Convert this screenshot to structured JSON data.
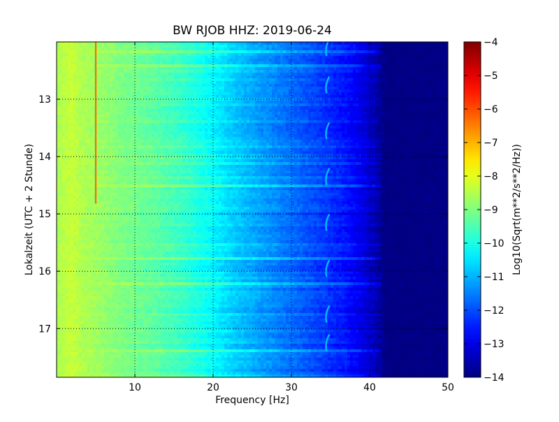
{
  "chart_data": {
    "type": "heatmap",
    "title": "BW RJOB HHZ: 2019-06-24",
    "xlabel": "Frequency [Hz]",
    "ylabel": "Lokalzeit (UTC + 2 Stunde)",
    "colorbar_label": "Log10(Sqrt(m**2/s**2/Hz))",
    "xlim": [
      0,
      50
    ],
    "ylim": [
      17.85,
      12.0
    ],
    "x_ticks": [
      10,
      20,
      30,
      40,
      50
    ],
    "x_tick_labels": [
      "10",
      "20",
      "30",
      "40",
      "50"
    ],
    "y_ticks": [
      13,
      14,
      15,
      16,
      17
    ],
    "y_tick_labels": [
      "13",
      "14",
      "15",
      "16",
      "17"
    ],
    "clim": [
      -14,
      -4
    ],
    "colorbar_ticks": [
      -4,
      -5,
      -6,
      -7,
      -8,
      -9,
      -10,
      -11,
      -12,
      -13,
      -14
    ],
    "colorbar_tick_labels": [
      "−4",
      "−5",
      "−6",
      "−7",
      "−8",
      "−9",
      "−10",
      "−11",
      "−12",
      "−13",
      "−14"
    ],
    "colormap": "jet",
    "grid": true,
    "grid_style": "dotted",
    "spectrum_profile": {
      "frequency_hz": [
        0,
        1,
        2,
        3,
        5,
        8,
        12,
        16,
        20,
        23,
        26,
        30,
        34,
        37,
        39,
        40.5,
        41.5,
        42,
        50
      ],
      "level": [
        -8.6,
        -8.4,
        -8.3,
        -8.5,
        -8.7,
        -9.0,
        -9.3,
        -9.7,
        -10.3,
        -10.8,
        -11.2,
        -11.7,
        -12.2,
        -12.6,
        -13.0,
        -13.4,
        -13.8,
        -14.0,
        -14.0
      ]
    },
    "annotations": [
      {
        "kind": "narrowband-line",
        "frequency_hz": 5.0,
        "time_start": 12.0,
        "time_end": 14.82,
        "level": -6.3
      },
      {
        "kind": "narrowband-arcs",
        "frequency_hz": 34.5,
        "level": -10.9,
        "times": [
          12.1,
          12.75,
          13.55,
          14.35,
          15.15,
          15.95,
          16.75,
          17.25
        ]
      }
    ]
  }
}
